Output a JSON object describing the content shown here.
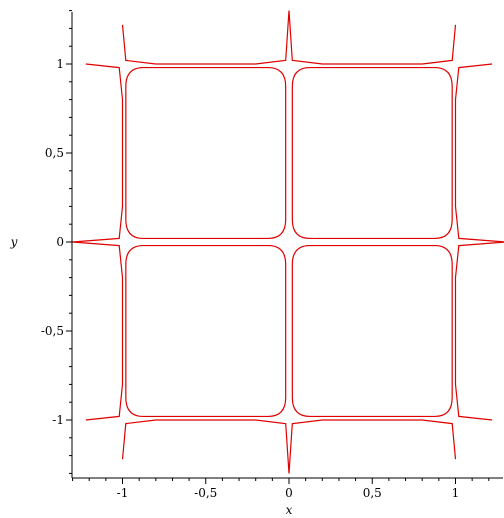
{
  "chart_data": {
    "type": "line",
    "title": "",
    "xlabel": "x",
    "ylabel": "y",
    "xlim": [
      -1.3,
      1.3
    ],
    "ylim": [
      -1.3,
      1.3
    ],
    "grid": false,
    "legend": "none",
    "line_color": "#e00000",
    "x_ticks": [
      {
        "value": -1,
        "label": "-1"
      },
      {
        "value": -0.5,
        "label": "-0,5"
      },
      {
        "value": 0,
        "label": "0"
      },
      {
        "value": 0.5,
        "label": "0,5"
      },
      {
        "value": 1,
        "label": "1"
      }
    ],
    "y_ticks": [
      {
        "value": 1,
        "label": "1"
      },
      {
        "value": 0.5,
        "label": "0,5"
      },
      {
        "value": 0,
        "label": "0"
      },
      {
        "value": -0.5,
        "label": "-0,5"
      },
      {
        "value": -1,
        "label": "-1"
      }
    ],
    "cells": [
      {
        "x": [
          0.02,
          0.98
        ],
        "y": [
          0.02,
          0.98
        ]
      },
      {
        "x": [
          -0.98,
          -0.02
        ],
        "y": [
          0.02,
          0.98
        ]
      },
      {
        "x": [
          -0.98,
          -0.02
        ],
        "y": [
          -0.98,
          -0.02
        ]
      },
      {
        "x": [
          0.02,
          0.98
        ],
        "y": [
          -0.98,
          -0.02
        ]
      }
    ],
    "series": [
      {
        "x": [
          -1.0,
          -0.98,
          -0.8,
          -0.5,
          -0.2,
          -0.02,
          0.0,
          0.02,
          0.2,
          0.5,
          0.8,
          0.98,
          1.0
        ],
        "y": [
          1.22,
          1.02,
          1.0,
          1.0,
          1.0,
          1.02,
          1.3,
          1.02,
          1.0,
          1.0,
          1.0,
          1.02,
          1.22
        ]
      },
      {
        "x": [
          -1.0,
          -0.98,
          -0.8,
          -0.5,
          -0.2,
          -0.02,
          0.0,
          0.02,
          0.2,
          0.5,
          0.8,
          0.98,
          1.0
        ],
        "y": [
          -1.22,
          -1.02,
          -1.0,
          -1.0,
          -1.0,
          -1.02,
          -1.3,
          -1.02,
          -1.0,
          -1.0,
          -1.0,
          -1.02,
          -1.22
        ]
      },
      {
        "x": [
          -1.22,
          -1.02,
          -1.0,
          -1.0,
          -1.0,
          -1.02,
          -1.3,
          -1.02,
          -1.0,
          -1.0,
          -1.0,
          -1.02,
          -1.22
        ],
        "y": [
          -1.0,
          -0.98,
          -0.8,
          -0.5,
          -0.2,
          -0.02,
          0.0,
          0.02,
          0.2,
          0.5,
          0.8,
          0.98,
          1.0
        ]
      },
      {
        "x": [
          1.22,
          1.02,
          1.0,
          1.0,
          1.0,
          1.02,
          1.3,
          1.02,
          1.0,
          1.0,
          1.0,
          1.02,
          1.22
        ],
        "y": [
          -1.0,
          -0.98,
          -0.8,
          -0.5,
          -0.2,
          -0.02,
          0.0,
          0.02,
          0.2,
          0.5,
          0.8,
          0.98,
          1.0
        ]
      }
    ]
  }
}
